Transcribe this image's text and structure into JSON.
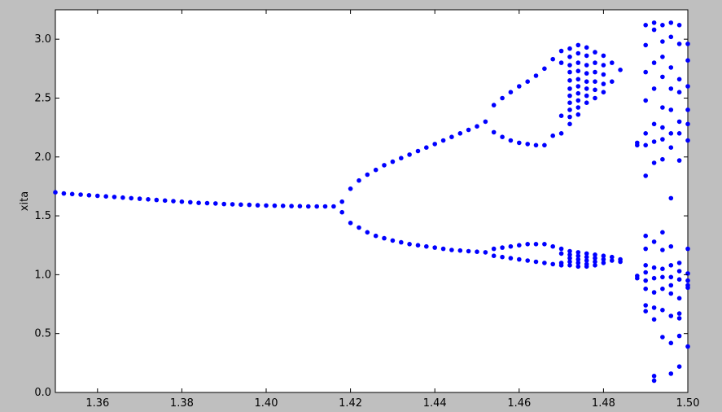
{
  "chart_data": {
    "type": "scatter",
    "title": "",
    "xlabel": "",
    "ylabel": "xita",
    "xlim": [
      1.35,
      1.5
    ],
    "ylim": [
      0.0,
      3.25
    ],
    "grid": false,
    "x_ticks": [
      1.36,
      1.38,
      1.4,
      1.42,
      1.44,
      1.46,
      1.48,
      1.5
    ],
    "x_tick_labels": [
      "1.36",
      "1.38",
      "1.40",
      "1.42",
      "1.44",
      "1.46",
      "1.48",
      "1.50"
    ],
    "y_ticks": [
      0.0,
      0.5,
      1.0,
      1.5,
      2.0,
      2.5,
      3.0
    ],
    "y_tick_labels": [
      "0.0",
      "0.5",
      "1.0",
      "1.5",
      "2.0",
      "2.5",
      "3.0"
    ],
    "colors": {
      "marker": "#0000ff",
      "background": "#bfbfbf",
      "plot_area": "#ffffff"
    },
    "series": [
      {
        "points": [
          [
            1.35,
            1.7
          ],
          [
            1.352,
            1.69
          ],
          [
            1.354,
            1.685
          ],
          [
            1.356,
            1.68
          ],
          [
            1.358,
            1.675
          ],
          [
            1.36,
            1.67
          ],
          [
            1.362,
            1.665
          ],
          [
            1.364,
            1.66
          ],
          [
            1.366,
            1.655
          ],
          [
            1.368,
            1.65
          ],
          [
            1.37,
            1.645
          ],
          [
            1.372,
            1.64
          ],
          [
            1.374,
            1.635
          ],
          [
            1.376,
            1.63
          ],
          [
            1.378,
            1.625
          ],
          [
            1.38,
            1.62
          ],
          [
            1.382,
            1.615
          ],
          [
            1.384,
            1.61
          ],
          [
            1.386,
            1.608
          ],
          [
            1.388,
            1.605
          ],
          [
            1.39,
            1.6
          ],
          [
            1.392,
            1.598
          ],
          [
            1.394,
            1.595
          ],
          [
            1.396,
            1.593
          ],
          [
            1.398,
            1.59
          ],
          [
            1.4,
            1.588
          ],
          [
            1.402,
            1.586
          ],
          [
            1.404,
            1.585
          ],
          [
            1.406,
            1.583
          ],
          [
            1.408,
            1.582
          ],
          [
            1.41,
            1.58
          ],
          [
            1.412,
            1.58
          ],
          [
            1.414,
            1.58
          ],
          [
            1.416,
            1.58
          ],
          [
            1.418,
            1.62
          ],
          [
            1.418,
            1.53
          ],
          [
            1.42,
            1.73
          ],
          [
            1.42,
            1.44
          ],
          [
            1.422,
            1.8
          ],
          [
            1.422,
            1.4
          ],
          [
            1.424,
            1.85
          ],
          [
            1.424,
            1.36
          ],
          [
            1.426,
            1.89
          ],
          [
            1.426,
            1.33
          ],
          [
            1.428,
            1.93
          ],
          [
            1.428,
            1.31
          ],
          [
            1.43,
            1.96
          ],
          [
            1.43,
            1.29
          ],
          [
            1.432,
            1.99
          ],
          [
            1.432,
            1.275
          ],
          [
            1.434,
            2.02
          ],
          [
            1.434,
            1.26
          ],
          [
            1.436,
            2.05
          ],
          [
            1.436,
            1.25
          ],
          [
            1.438,
            2.08
          ],
          [
            1.438,
            1.24
          ],
          [
            1.44,
            2.11
          ],
          [
            1.44,
            1.23
          ],
          [
            1.442,
            2.14
          ],
          [
            1.442,
            1.22
          ],
          [
            1.444,
            2.17
          ],
          [
            1.444,
            1.21
          ],
          [
            1.446,
            2.2
          ],
          [
            1.446,
            1.205
          ],
          [
            1.448,
            2.23
          ],
          [
            1.448,
            1.2
          ],
          [
            1.45,
            2.26
          ],
          [
            1.45,
            1.195
          ],
          [
            1.452,
            2.3
          ],
          [
            1.452,
            1.19
          ],
          [
            1.454,
            2.44
          ],
          [
            1.454,
            2.21
          ],
          [
            1.454,
            1.22
          ],
          [
            1.454,
            1.16
          ],
          [
            1.456,
            2.5
          ],
          [
            1.456,
            2.17
          ],
          [
            1.456,
            1.23
          ],
          [
            1.456,
            1.15
          ],
          [
            1.458,
            2.55
          ],
          [
            1.458,
            2.14
          ],
          [
            1.458,
            1.24
          ],
          [
            1.458,
            1.14
          ],
          [
            1.46,
            2.6
          ],
          [
            1.46,
            2.12
          ],
          [
            1.46,
            1.25
          ],
          [
            1.46,
            1.13
          ],
          [
            1.462,
            2.64
          ],
          [
            1.462,
            2.11
          ],
          [
            1.462,
            1.26
          ],
          [
            1.462,
            1.12
          ],
          [
            1.464,
            2.69
          ],
          [
            1.464,
            2.1
          ],
          [
            1.464,
            1.26
          ],
          [
            1.464,
            1.11
          ],
          [
            1.466,
            2.75
          ],
          [
            1.466,
            2.1
          ],
          [
            1.466,
            1.26
          ],
          [
            1.466,
            1.1
          ],
          [
            1.468,
            2.83
          ],
          [
            1.468,
            2.18
          ],
          [
            1.468,
            1.24
          ],
          [
            1.468,
            1.09
          ],
          [
            1.47,
            2.9
          ],
          [
            1.47,
            2.8
          ],
          [
            1.47,
            2.35
          ],
          [
            1.47,
            2.2
          ],
          [
            1.47,
            1.22
          ],
          [
            1.47,
            1.18
          ],
          [
            1.47,
            1.1
          ],
          [
            1.47,
            1.08
          ],
          [
            1.472,
            2.92
          ],
          [
            1.472,
            2.85
          ],
          [
            1.472,
            2.78
          ],
          [
            1.472,
            2.72
          ],
          [
            1.472,
            2.65
          ],
          [
            1.472,
            2.58
          ],
          [
            1.472,
            2.52
          ],
          [
            1.472,
            2.46
          ],
          [
            1.472,
            2.4
          ],
          [
            1.472,
            2.34
          ],
          [
            1.472,
            2.28
          ],
          [
            1.472,
            1.2
          ],
          [
            1.472,
            1.17
          ],
          [
            1.472,
            1.14
          ],
          [
            1.472,
            1.11
          ],
          [
            1.472,
            1.08
          ],
          [
            1.474,
            2.95
          ],
          [
            1.474,
            2.88
          ],
          [
            1.474,
            2.8
          ],
          [
            1.474,
            2.73
          ],
          [
            1.474,
            2.66
          ],
          [
            1.474,
            2.6
          ],
          [
            1.474,
            2.54
          ],
          [
            1.474,
            2.48
          ],
          [
            1.474,
            2.42
          ],
          [
            1.474,
            2.36
          ],
          [
            1.474,
            1.19
          ],
          [
            1.474,
            1.16
          ],
          [
            1.474,
            1.13
          ],
          [
            1.474,
            1.1
          ],
          [
            1.474,
            1.07
          ],
          [
            1.476,
            2.93
          ],
          [
            1.476,
            2.86
          ],
          [
            1.476,
            2.78
          ],
          [
            1.476,
            2.71
          ],
          [
            1.476,
            2.64
          ],
          [
            1.476,
            2.58
          ],
          [
            1.476,
            2.52
          ],
          [
            1.476,
            2.46
          ],
          [
            1.476,
            1.18
          ],
          [
            1.476,
            1.15
          ],
          [
            1.476,
            1.12
          ],
          [
            1.476,
            1.09
          ],
          [
            1.476,
            1.07
          ],
          [
            1.478,
            2.89
          ],
          [
            1.478,
            2.8
          ],
          [
            1.478,
            2.72
          ],
          [
            1.478,
            2.64
          ],
          [
            1.478,
            2.57
          ],
          [
            1.478,
            2.5
          ],
          [
            1.478,
            1.17
          ],
          [
            1.478,
            1.14
          ],
          [
            1.478,
            1.11
          ],
          [
            1.478,
            1.08
          ],
          [
            1.48,
            2.86
          ],
          [
            1.48,
            2.78
          ],
          [
            1.48,
            2.7
          ],
          [
            1.48,
            2.62
          ],
          [
            1.48,
            2.55
          ],
          [
            1.48,
            1.16
          ],
          [
            1.48,
            1.13
          ],
          [
            1.48,
            1.1
          ],
          [
            1.482,
            2.8
          ],
          [
            1.482,
            2.64
          ],
          [
            1.482,
            1.15
          ],
          [
            1.482,
            1.12
          ],
          [
            1.484,
            2.74
          ],
          [
            1.484,
            1.13
          ],
          [
            1.484,
            1.11
          ],
          [
            1.488,
            2.12
          ],
          [
            1.488,
            2.1
          ],
          [
            1.488,
            0.99
          ],
          [
            1.488,
            0.97
          ],
          [
            1.49,
            3.12
          ],
          [
            1.49,
            2.95
          ],
          [
            1.49,
            2.72
          ],
          [
            1.49,
            2.48
          ],
          [
            1.49,
            2.2
          ],
          [
            1.49,
            2.1
          ],
          [
            1.49,
            1.84
          ],
          [
            1.49,
            1.33
          ],
          [
            1.49,
            1.22
          ],
          [
            1.49,
            1.08
          ],
          [
            1.49,
            1.02
          ],
          [
            1.49,
            0.95
          ],
          [
            1.49,
            0.88
          ],
          [
            1.49,
            0.74
          ],
          [
            1.49,
            0.69
          ],
          [
            1.492,
            3.14
          ],
          [
            1.492,
            3.08
          ],
          [
            1.492,
            2.8
          ],
          [
            1.492,
            2.58
          ],
          [
            1.492,
            2.28
          ],
          [
            1.492,
            2.13
          ],
          [
            1.492,
            1.95
          ],
          [
            1.492,
            1.28
          ],
          [
            1.492,
            1.06
          ],
          [
            1.492,
            0.97
          ],
          [
            1.492,
            0.85
          ],
          [
            1.492,
            0.72
          ],
          [
            1.492,
            0.62
          ],
          [
            1.492,
            0.14
          ],
          [
            1.492,
            0.1
          ],
          [
            1.494,
            3.12
          ],
          [
            1.494,
            2.98
          ],
          [
            1.494,
            2.85
          ],
          [
            1.494,
            2.68
          ],
          [
            1.494,
            2.42
          ],
          [
            1.494,
            2.25
          ],
          [
            1.494,
            2.15
          ],
          [
            1.494,
            1.98
          ],
          [
            1.494,
            1.36
          ],
          [
            1.494,
            1.21
          ],
          [
            1.494,
            1.05
          ],
          [
            1.494,
            0.98
          ],
          [
            1.494,
            0.88
          ],
          [
            1.494,
            0.7
          ],
          [
            1.494,
            0.47
          ],
          [
            1.496,
            3.14
          ],
          [
            1.496,
            3.02
          ],
          [
            1.496,
            2.76
          ],
          [
            1.496,
            2.58
          ],
          [
            1.496,
            2.4
          ],
          [
            1.496,
            2.2
          ],
          [
            1.496,
            2.08
          ],
          [
            1.496,
            1.65
          ],
          [
            1.496,
            1.24
          ],
          [
            1.496,
            1.08
          ],
          [
            1.496,
            0.98
          ],
          [
            1.496,
            0.91
          ],
          [
            1.496,
            0.84
          ],
          [
            1.496,
            0.65
          ],
          [
            1.496,
            0.42
          ],
          [
            1.496,
            0.16
          ],
          [
            1.498,
            3.12
          ],
          [
            1.498,
            2.96
          ],
          [
            1.498,
            2.66
          ],
          [
            1.498,
            2.55
          ],
          [
            1.498,
            2.3
          ],
          [
            1.498,
            2.2
          ],
          [
            1.498,
            1.97
          ],
          [
            1.498,
            1.1
          ],
          [
            1.498,
            1.03
          ],
          [
            1.498,
            0.96
          ],
          [
            1.498,
            0.8
          ],
          [
            1.498,
            0.67
          ],
          [
            1.498,
            0.63
          ],
          [
            1.498,
            0.48
          ],
          [
            1.498,
            0.22
          ],
          [
            1.5,
            2.96
          ],
          [
            1.5,
            2.82
          ],
          [
            1.5,
            2.6
          ],
          [
            1.5,
            2.4
          ],
          [
            1.5,
            2.28
          ],
          [
            1.5,
            2.14
          ],
          [
            1.5,
            1.22
          ],
          [
            1.5,
            1.01
          ],
          [
            1.5,
            0.95
          ],
          [
            1.5,
            0.91
          ],
          [
            1.5,
            0.89
          ],
          [
            1.5,
            0.39
          ]
        ]
      }
    ]
  }
}
